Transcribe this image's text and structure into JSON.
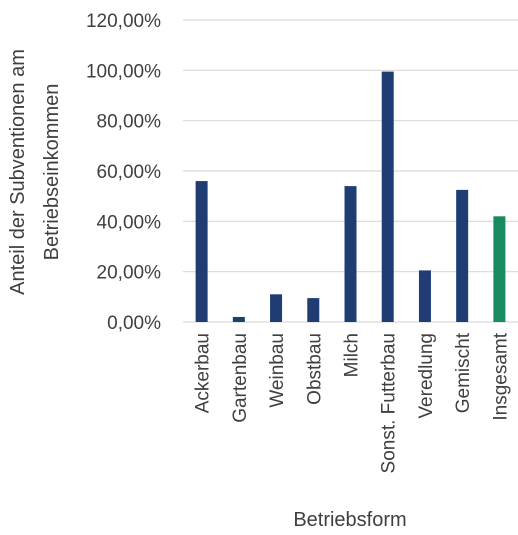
{
  "chart_data": {
    "type": "bar",
    "categories": [
      "Ackerbau",
      "Gartenbau",
      "Weinbau",
      "Obstbau",
      "Milch",
      "Sonst. Futterbau",
      "Veredlung",
      "Gemischt",
      "Insgesamt"
    ],
    "values": [
      56.0,
      2.0,
      11.0,
      9.5,
      54.0,
      99.5,
      20.5,
      52.5,
      42.0
    ],
    "bar_colors": [
      "#1f3c73",
      "#1f3c73",
      "#1f3c73",
      "#1f3c73",
      "#1f3c73",
      "#1f3c73",
      "#1f3c73",
      "#1f3c73",
      "#1a8a5f"
    ],
    "title": "",
    "xlabel": "Betriebsform",
    "ylabel": [
      "Anteil der Subventionen am",
      "Betriebseinkommen"
    ],
    "ylim": [
      0,
      120
    ],
    "yticks": [
      "0,00%",
      "20,00%",
      "40,00%",
      "60,00%",
      "80,00%",
      "100,00%",
      "120,00%"
    ],
    "grid": true,
    "legend": "none"
  }
}
